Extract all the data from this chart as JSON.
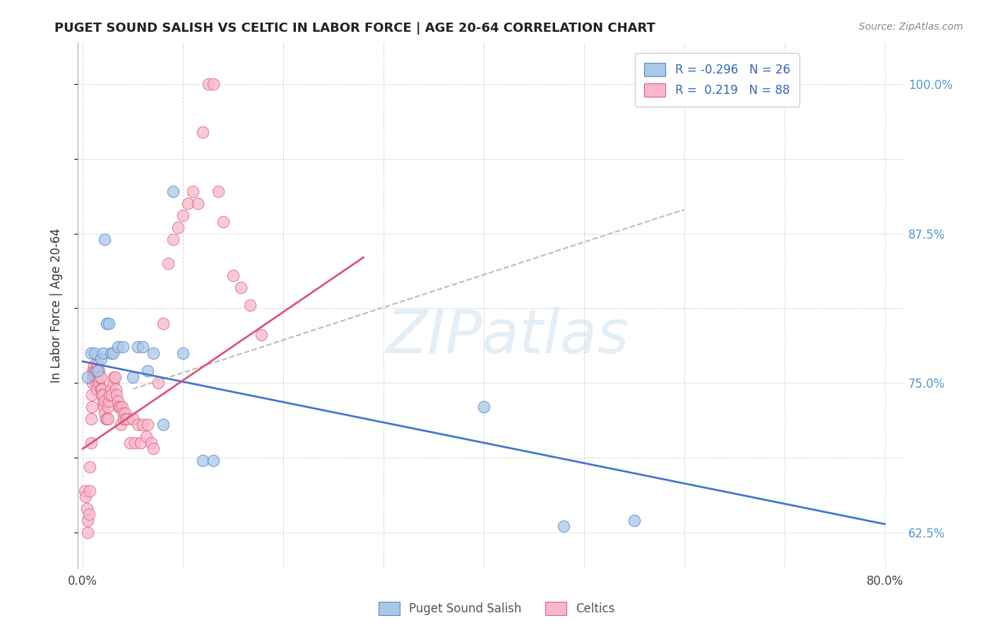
{
  "title": "PUGET SOUND SALISH VS CELTIC IN LABOR FORCE | AGE 20-64 CORRELATION CHART",
  "source": "Source: ZipAtlas.com",
  "ylabel": "In Labor Force | Age 20-64",
  "x_ticks": [
    0.0,
    0.1,
    0.2,
    0.3,
    0.4,
    0.5,
    0.6,
    0.7,
    0.8
  ],
  "x_tick_labels": [
    "0.0%",
    "",
    "",
    "",
    "",
    "",
    "",
    "",
    "80.0%"
  ],
  "y_ticks": [
    0.625,
    0.6875,
    0.75,
    0.8125,
    0.875,
    0.9375,
    1.0
  ],
  "y_tick_labels_right": [
    "62.5%",
    "",
    "75.0%",
    "",
    "87.5%",
    "",
    "100.0%"
  ],
  "xlim": [
    -0.005,
    0.82
  ],
  "ylim": [
    0.595,
    1.035
  ],
  "legend_blue_label": "R = -0.296   N = 26",
  "legend_pink_label": "R =  0.219   N = 88",
  "legend_bottom_blue": "Puget Sound Salish",
  "legend_bottom_pink": "Celtics",
  "blue_fill": "#a8c8e8",
  "blue_edge": "#5588cc",
  "pink_fill": "#f8b8cc",
  "pink_edge": "#e06080",
  "blue_line_color": "#4477cc",
  "pink_line_color": "#dd5577",
  "gray_dash_color": "#bbbbbb",
  "watermark_text": "ZIPatlas",
  "blue_R": -0.296,
  "blue_N": 26,
  "pink_R": 0.219,
  "pink_N": 88,
  "blue_line_x0": 0.0,
  "blue_line_y0": 0.768,
  "blue_line_x1": 0.8,
  "blue_line_y1": 0.632,
  "pink_line_x0": 0.0,
  "pink_line_y0": 0.695,
  "pink_line_x1": 0.28,
  "pink_line_y1": 0.855,
  "gray_line_x0": 0.05,
  "gray_line_y0": 0.745,
  "gray_line_x1": 0.6,
  "gray_line_y1": 0.895,
  "blue_points_x": [
    0.005,
    0.008,
    0.012,
    0.015,
    0.018,
    0.02,
    0.022,
    0.024,
    0.026,
    0.028,
    0.03,
    0.035,
    0.04,
    0.05,
    0.055,
    0.06,
    0.065,
    0.07,
    0.08,
    0.09,
    0.1,
    0.12,
    0.13,
    0.4,
    0.48,
    0.55
  ],
  "blue_points_y": [
    0.755,
    0.775,
    0.775,
    0.76,
    0.77,
    0.775,
    0.87,
    0.8,
    0.8,
    0.775,
    0.775,
    0.78,
    0.78,
    0.755,
    0.78,
    0.78,
    0.76,
    0.775,
    0.715,
    0.91,
    0.775,
    0.685,
    0.685,
    0.73,
    0.63,
    0.635
  ],
  "pink_points_x": [
    0.002,
    0.003,
    0.004,
    0.005,
    0.005,
    0.006,
    0.007,
    0.007,
    0.008,
    0.008,
    0.009,
    0.009,
    0.01,
    0.01,
    0.01,
    0.011,
    0.011,
    0.012,
    0.012,
    0.013,
    0.013,
    0.014,
    0.014,
    0.015,
    0.015,
    0.016,
    0.016,
    0.017,
    0.018,
    0.018,
    0.019,
    0.019,
    0.02,
    0.02,
    0.021,
    0.022,
    0.022,
    0.023,
    0.024,
    0.025,
    0.025,
    0.026,
    0.027,
    0.028,
    0.029,
    0.03,
    0.031,
    0.032,
    0.033,
    0.034,
    0.035,
    0.036,
    0.037,
    0.038,
    0.039,
    0.04,
    0.041,
    0.042,
    0.043,
    0.045,
    0.047,
    0.05,
    0.052,
    0.055,
    0.058,
    0.06,
    0.063,
    0.065,
    0.068,
    0.07,
    0.075,
    0.08,
    0.085,
    0.09,
    0.095,
    0.1,
    0.105,
    0.11,
    0.115,
    0.12,
    0.125,
    0.13,
    0.135,
    0.14,
    0.15,
    0.158,
    0.167,
    0.178
  ],
  "pink_points_y": [
    0.66,
    0.655,
    0.645,
    0.625,
    0.635,
    0.64,
    0.66,
    0.68,
    0.7,
    0.72,
    0.73,
    0.74,
    0.75,
    0.755,
    0.76,
    0.76,
    0.765,
    0.755,
    0.76,
    0.76,
    0.75,
    0.745,
    0.755,
    0.76,
    0.765,
    0.76,
    0.75,
    0.755,
    0.745,
    0.755,
    0.745,
    0.74,
    0.735,
    0.74,
    0.73,
    0.725,
    0.735,
    0.72,
    0.72,
    0.72,
    0.73,
    0.735,
    0.74,
    0.745,
    0.74,
    0.75,
    0.755,
    0.755,
    0.745,
    0.74,
    0.735,
    0.73,
    0.73,
    0.715,
    0.73,
    0.725,
    0.72,
    0.725,
    0.72,
    0.72,
    0.7,
    0.72,
    0.7,
    0.715,
    0.7,
    0.715,
    0.705,
    0.715,
    0.7,
    0.695,
    0.75,
    0.8,
    0.85,
    0.87,
    0.88,
    0.89,
    0.9,
    0.91,
    0.9,
    0.96,
    1.0,
    1.0,
    0.91,
    0.885,
    0.84,
    0.83,
    0.815,
    0.79
  ]
}
